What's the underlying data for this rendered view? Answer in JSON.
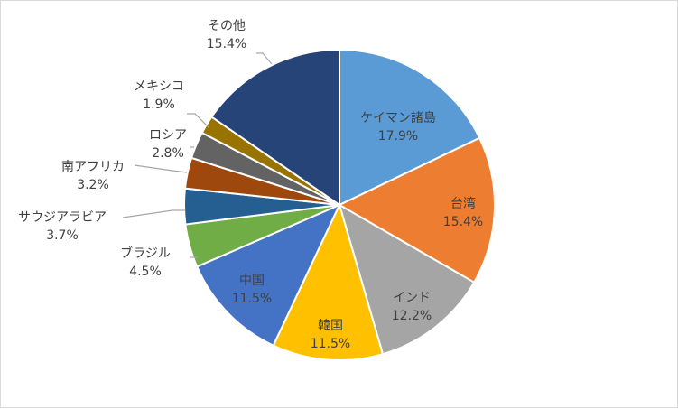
{
  "chart_data": {
    "type": "pie",
    "title": "",
    "slices": [
      {
        "label": "ケイマン諸島",
        "percent_label": "17.9%",
        "value": 17.9,
        "color": "#5B9BD5",
        "text_color": "#404040"
      },
      {
        "label": "台湾",
        "percent_label": "15.4%",
        "value": 15.4,
        "color": "#ED7D31",
        "text_color": "#404040"
      },
      {
        "label": "インド",
        "percent_label": "12.2%",
        "value": 12.2,
        "color": "#A5A5A5",
        "text_color": "#404040"
      },
      {
        "label": "韓国",
        "percent_label": "11.5%",
        "value": 11.5,
        "color": "#FFC000",
        "text_color": "#404040"
      },
      {
        "label": "中国",
        "percent_label": "11.5%",
        "value": 11.5,
        "color": "#4472C4",
        "text_color": "#404040"
      },
      {
        "label": "ブラジル",
        "percent_label": "4.5%",
        "value": 4.5,
        "color": "#70AD47",
        "text_color": "#404040"
      },
      {
        "label": "サウジアラビア",
        "percent_label": "3.7%",
        "value": 3.7,
        "color": "#255E91",
        "text_color": "#404040"
      },
      {
        "label": "南アフリカ",
        "percent_label": "3.2%",
        "value": 3.2,
        "color": "#9E480E",
        "text_color": "#404040"
      },
      {
        "label": "ロシア",
        "percent_label": "2.8%",
        "value": 2.8,
        "color": "#636363",
        "text_color": "#404040"
      },
      {
        "label": "メキシコ",
        "percent_label": "1.9%",
        "value": 1.9,
        "color": "#997300",
        "text_color": "#404040"
      },
      {
        "label": "その他",
        "percent_label": "15.4%",
        "value": 15.4,
        "color": "#264478",
        "text_color": "#404040"
      }
    ],
    "legend": "none",
    "label_position": "inside-or-leader"
  }
}
